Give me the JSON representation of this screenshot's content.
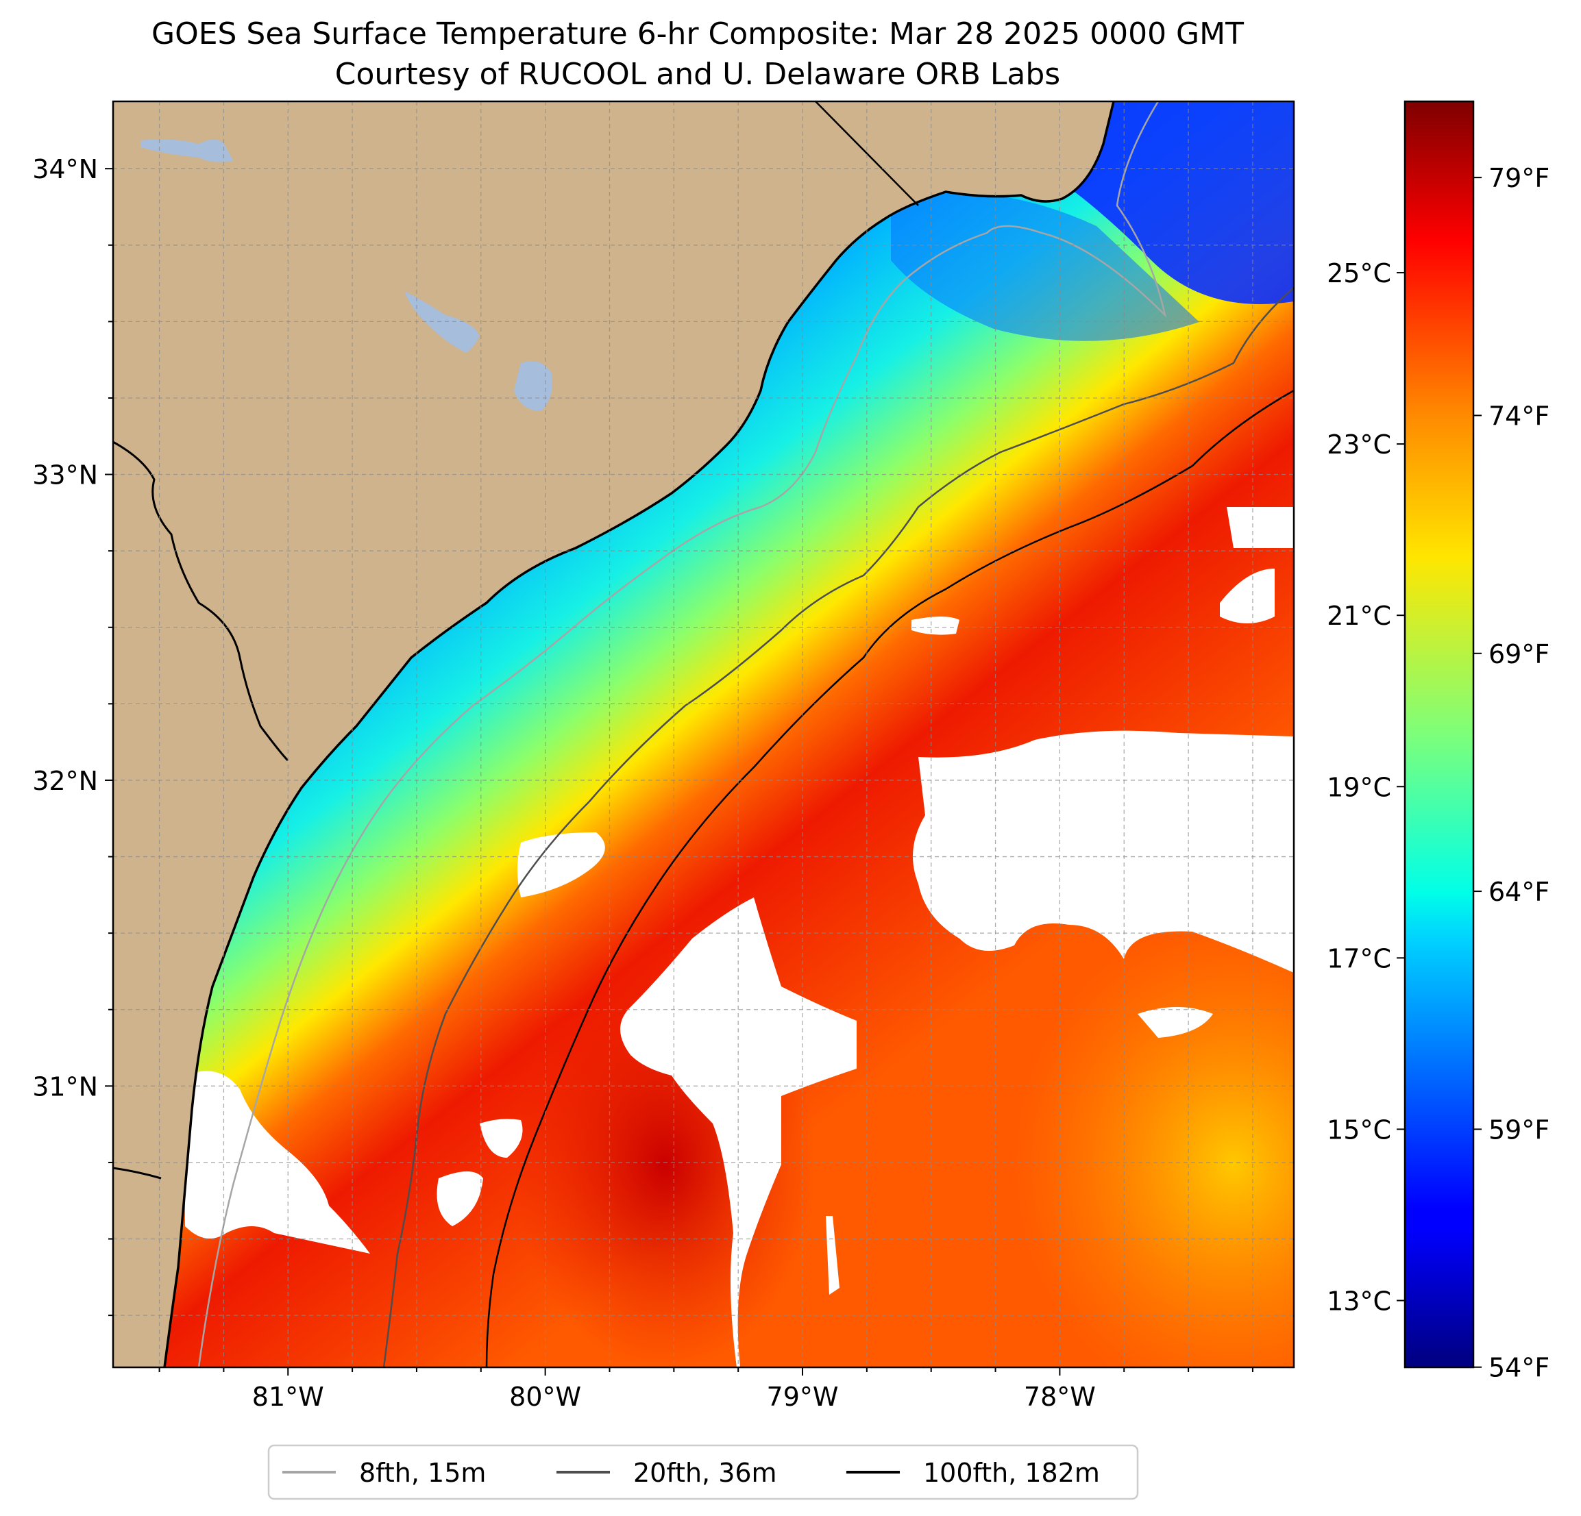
{
  "title": "GOES Sea Surface Temperature 6-hr Composite: Mar 28 2025 0000 GMT",
  "subtitle": "Courtesy of RUCOOL and U. Delaware ORB Labs",
  "map": {
    "lon_range": [
      -81.68,
      -77.09
    ],
    "lat_range": [
      30.08,
      34.22
    ],
    "lat_ticks": [
      {
        "value": 34,
        "label": "34°N"
      },
      {
        "value": 33,
        "label": "33°N"
      },
      {
        "value": 32,
        "label": "32°N"
      },
      {
        "value": 31,
        "label": "31°N"
      }
    ],
    "lon_ticks": [
      {
        "value": -81,
        "label": "81°W"
      },
      {
        "value": -80,
        "label": "80°W"
      },
      {
        "value": -79,
        "label": "79°W"
      },
      {
        "value": -78,
        "label": "78°W"
      }
    ],
    "grid": true,
    "colors": {
      "land": "#cfb38c",
      "lake": "#a6bddb",
      "missing": "#ffffff"
    }
  },
  "colorbar": {
    "colormap": "jet",
    "celsius_ticks": [
      {
        "value": 25,
        "label": "25°C"
      },
      {
        "value": 23,
        "label": "23°C"
      },
      {
        "value": 21,
        "label": "21°C"
      },
      {
        "value": 19,
        "label": "19°C"
      },
      {
        "value": 17,
        "label": "17°C"
      },
      {
        "value": 15,
        "label": "15°C"
      },
      {
        "value": 13,
        "label": "13°C"
      }
    ],
    "fahrenheit_ticks": [
      {
        "value": 79,
        "label": "79°F"
      },
      {
        "value": 74,
        "label": "74°F"
      },
      {
        "value": 69,
        "label": "69°F"
      },
      {
        "value": 64,
        "label": "64°F"
      },
      {
        "value": 59,
        "label": "59°F"
      },
      {
        "value": 54,
        "label": "54°F"
      }
    ]
  },
  "legend": {
    "placement": "bottom-center",
    "items": [
      {
        "label": "8fth, 15m",
        "color": "#a6a6a6"
      },
      {
        "label": "20fth, 36m",
        "color": "#4d4d4d"
      },
      {
        "label": "100fth, 182m",
        "color": "#000000"
      }
    ]
  }
}
